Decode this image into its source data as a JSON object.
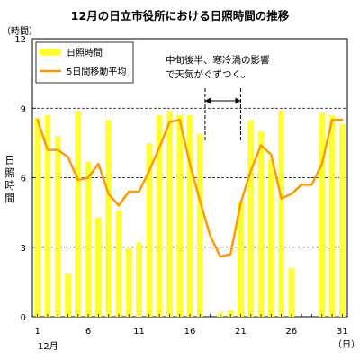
{
  "chart_data": {
    "type": "bar",
    "title": "12月の日立市役所における日照時間の推移",
    "ylabel_unit": "（時間）",
    "ylabel": "日照時間",
    "xlabel_unit": "（日）",
    "month_label": "12月",
    "ylim": [
      0,
      12
    ],
    "yticks": [
      0,
      3,
      6,
      9,
      12
    ],
    "xlim": [
      1,
      31
    ],
    "xticks": [
      1,
      6,
      11,
      16,
      21,
      26,
      31
    ],
    "grid": "horizontal-dashed",
    "legend_position": "top-left",
    "categories": [
      1,
      2,
      3,
      4,
      5,
      6,
      7,
      8,
      9,
      10,
      11,
      12,
      13,
      14,
      15,
      16,
      17,
      18,
      19,
      20,
      21,
      22,
      23,
      24,
      25,
      26,
      27,
      28,
      29,
      30,
      31
    ],
    "series": [
      {
        "name": "日照時間",
        "type": "bar",
        "color": "#ffff33",
        "values": [
          8.6,
          8.7,
          7.8,
          1.9,
          8.9,
          6.7,
          4.3,
          8.5,
          4.6,
          3.0,
          3.2,
          7.5,
          8.7,
          8.9,
          8.7,
          8.7,
          7.9,
          0.0,
          0.2,
          0.3,
          5.0,
          8.5,
          8.0,
          6.8,
          8.9,
          2.1,
          0.0,
          0.0,
          8.8,
          8.7,
          8.3
        ]
      },
      {
        "name": "5日間移動平均",
        "type": "line",
        "color": "#ff9900",
        "values": [
          8.5,
          7.2,
          7.2,
          6.9,
          5.9,
          6.0,
          6.6,
          5.3,
          4.8,
          5.4,
          5.4,
          6.3,
          7.3,
          8.4,
          8.5,
          6.6,
          5.0,
          3.5,
          2.6,
          2.7,
          4.9,
          6.3,
          7.4,
          7.0,
          5.1,
          5.3,
          5.7,
          5.7,
          6.6,
          8.5,
          8.5
        ]
      }
    ],
    "annotation": {
      "lines": [
        "中旬後半、寒冷渦の影響",
        "で天気がぐずつく。"
      ],
      "span": [
        17.5,
        21.0
      ]
    }
  }
}
